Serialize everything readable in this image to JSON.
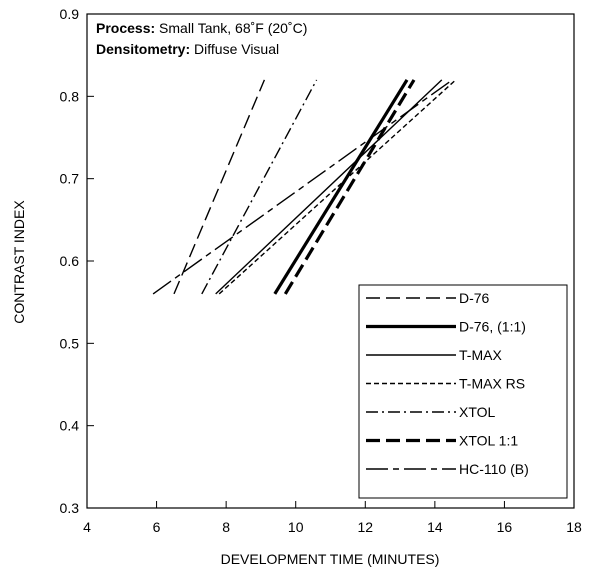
{
  "annotation": {
    "process_label": "Process:",
    "process_value": " Small Tank, 68˚F (20˚C)",
    "densitometry_label": "Densitometry:",
    "densitometry_value": " Diffuse Visual"
  },
  "chart_data": {
    "type": "line",
    "title": "",
    "xlabel": "DEVELOPMENT TIME (MINUTES)",
    "ylabel": "CONTRAST INDEX",
    "xlim": [
      4,
      18
    ],
    "ylim": [
      0.3,
      0.9
    ],
    "x_ticks": [
      "4",
      "6",
      "8",
      "10",
      "12",
      "14",
      "16",
      "18"
    ],
    "y_ticks": [
      "0.3",
      "0.4",
      "0.5",
      "0.6",
      "0.7",
      "0.8",
      "0.9"
    ],
    "grid": false,
    "legend_position": "bottom-right",
    "series": [
      {
        "name": "D-76",
        "dash": "14,6",
        "width": 1.4,
        "points": [
          [
            6.5,
            0.56
          ],
          [
            9.1,
            0.82
          ]
        ]
      },
      {
        "name": "D-76, (1:1)",
        "dash": "",
        "width": 3.2,
        "points": [
          [
            9.4,
            0.56
          ],
          [
            13.2,
            0.82
          ]
        ]
      },
      {
        "name": "T-MAX",
        "dash": "",
        "width": 1.4,
        "points": [
          [
            7.7,
            0.56
          ],
          [
            14.2,
            0.82
          ]
        ]
      },
      {
        "name": "T-MAX RS",
        "dash": "5,3",
        "width": 1.4,
        "points": [
          [
            7.8,
            0.56
          ],
          [
            14.6,
            0.82
          ]
        ]
      },
      {
        "name": "XTOL",
        "dash": "12,4,2,4",
        "width": 1.4,
        "points": [
          [
            7.3,
            0.56
          ],
          [
            10.6,
            0.82
          ]
        ]
      },
      {
        "name": "XTOL 1:1",
        "dash": "14,6",
        "width": 3.2,
        "points": [
          [
            9.7,
            0.56
          ],
          [
            13.4,
            0.82
          ]
        ]
      },
      {
        "name": "HC-110 (B)",
        "dash": "22,5,6,5",
        "width": 1.4,
        "points": [
          [
            5.9,
            0.56
          ],
          [
            14.5,
            0.82
          ]
        ]
      }
    ]
  }
}
